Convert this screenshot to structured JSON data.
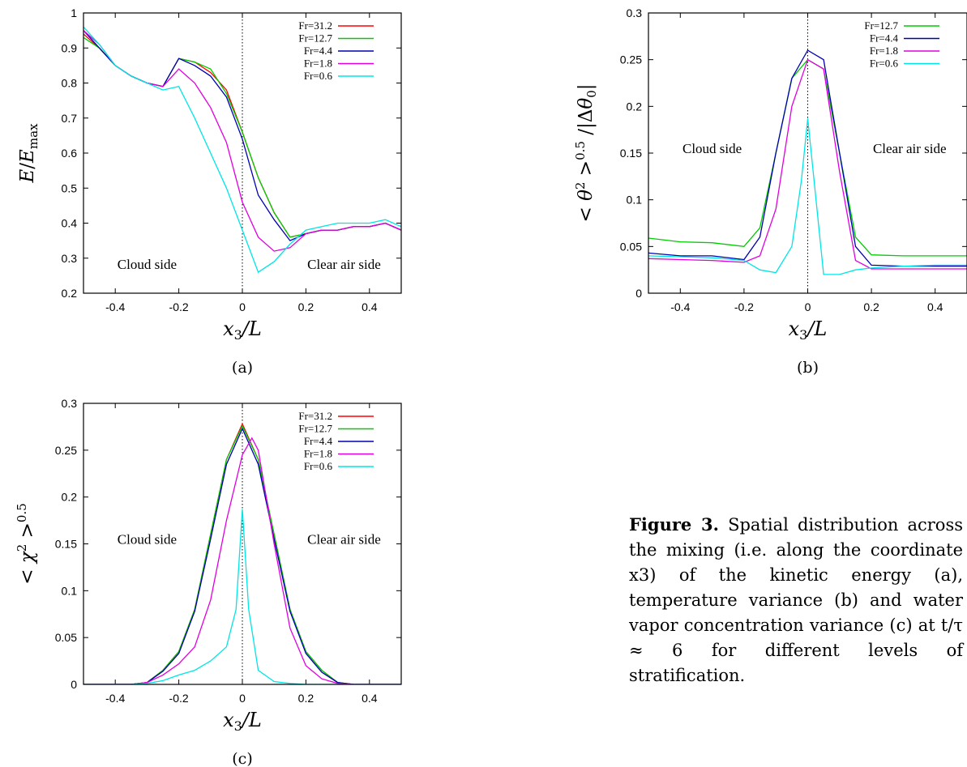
{
  "caption": {
    "label": "Figure 3.",
    "text": "Spatial distribution across the mixing (i.e. along the coordinate x3) of the kinetic energy (a), temperature variance (b) and water vapor concentration variance (c) at t/τ ≈ 6 for different levels of stratification."
  },
  "colors": {
    "Fr=31.2": "#ff0000",
    "Fr=12.7": "#00cc00",
    "Fr=4.4": "#0000b0",
    "Fr=1.8": "#e000e0",
    "Fr=0.6": "#00e5e5"
  },
  "chart_data": [
    {
      "panel": "(a)",
      "type": "line",
      "xlabel": "x3/L",
      "ylabel": "E/Emax",
      "xlim": [
        -0.5,
        0.5
      ],
      "ylim": [
        0.2,
        1.0
      ],
      "xticks": [
        "-0.4",
        "-0.2",
        "0",
        "0.2",
        "0.4"
      ],
      "yticks": [
        "0.2",
        "0.3",
        "0.4",
        "0.5",
        "0.6",
        "0.7",
        "0.8",
        "0.9",
        "1"
      ],
      "legend_position": "top-right",
      "annotations": [
        "Cloud side",
        "Clear air side"
      ],
      "grid": false,
      "series": [
        {
          "name": "Fr=31.2",
          "x": [
            -0.5,
            -0.45,
            -0.4,
            -0.35,
            -0.3,
            -0.25,
            -0.2,
            -0.15,
            -0.1,
            -0.05,
            0,
            0.05,
            0.1,
            0.15,
            0.2,
            0.25,
            0.3,
            0.35,
            0.4,
            0.45,
            0.5
          ],
          "y": [
            0.94,
            0.9,
            0.85,
            0.82,
            0.8,
            0.79,
            0.87,
            0.86,
            0.83,
            0.78,
            0.66,
            0.53,
            0.43,
            0.36,
            0.37,
            0.38,
            0.38,
            0.39,
            0.39,
            0.4,
            0.38
          ]
        },
        {
          "name": "Fr=12.7",
          "x": [
            -0.5,
            -0.45,
            -0.4,
            -0.35,
            -0.3,
            -0.25,
            -0.2,
            -0.15,
            -0.1,
            -0.05,
            0,
            0.05,
            0.1,
            0.15,
            0.2,
            0.25,
            0.3,
            0.35,
            0.4,
            0.45,
            0.5
          ],
          "y": [
            0.93,
            0.9,
            0.85,
            0.82,
            0.8,
            0.79,
            0.87,
            0.86,
            0.84,
            0.77,
            0.66,
            0.53,
            0.43,
            0.36,
            0.37,
            0.38,
            0.38,
            0.39,
            0.39,
            0.4,
            0.38
          ]
        },
        {
          "name": "Fr=4.4",
          "x": [
            -0.5,
            -0.45,
            -0.4,
            -0.35,
            -0.3,
            -0.25,
            -0.2,
            -0.15,
            -0.1,
            -0.05,
            0,
            0.05,
            0.1,
            0.15,
            0.2,
            0.25,
            0.3,
            0.35,
            0.4,
            0.45,
            0.5
          ],
          "y": [
            0.95,
            0.9,
            0.85,
            0.82,
            0.8,
            0.79,
            0.87,
            0.85,
            0.82,
            0.76,
            0.64,
            0.48,
            0.41,
            0.35,
            0.37,
            0.38,
            0.38,
            0.39,
            0.39,
            0.4,
            0.38
          ]
        },
        {
          "name": "Fr=1.8",
          "x": [
            -0.5,
            -0.45,
            -0.4,
            -0.35,
            -0.3,
            -0.25,
            -0.2,
            -0.15,
            -0.1,
            -0.05,
            0,
            0.05,
            0.1,
            0.15,
            0.2,
            0.25,
            0.3,
            0.35,
            0.4,
            0.45,
            0.5
          ],
          "y": [
            0.95,
            0.91,
            0.85,
            0.82,
            0.8,
            0.79,
            0.84,
            0.8,
            0.73,
            0.63,
            0.46,
            0.36,
            0.32,
            0.33,
            0.37,
            0.38,
            0.38,
            0.39,
            0.39,
            0.4,
            0.38
          ]
        },
        {
          "name": "Fr=0.6",
          "x": [
            -0.5,
            -0.45,
            -0.4,
            -0.35,
            -0.3,
            -0.25,
            -0.2,
            -0.15,
            -0.1,
            -0.05,
            0,
            0.05,
            0.1,
            0.15,
            0.2,
            0.25,
            0.3,
            0.35,
            0.4,
            0.45,
            0.5
          ],
          "y": [
            0.96,
            0.91,
            0.85,
            0.82,
            0.8,
            0.78,
            0.79,
            0.7,
            0.6,
            0.5,
            0.38,
            0.26,
            0.29,
            0.34,
            0.38,
            0.39,
            0.4,
            0.4,
            0.4,
            0.41,
            0.39
          ]
        }
      ]
    },
    {
      "panel": "(b)",
      "type": "line",
      "xlabel": "x3/L",
      "ylabel": "< θ2 >0.5 /|Δθ0|",
      "xlim": [
        -0.5,
        0.5
      ],
      "ylim": [
        0,
        0.3
      ],
      "xticks": [
        "-0.4",
        "-0.2",
        "0",
        "0.2",
        "0.4"
      ],
      "yticks": [
        "0",
        "0.05",
        "0.1",
        "0.15",
        "0.2",
        "0.25",
        "0.3"
      ],
      "legend_position": "top-right",
      "annotations": [
        "Cloud side",
        "Clear air side"
      ],
      "grid": false,
      "series": [
        {
          "name": "Fr=12.7",
          "x": [
            -0.5,
            -0.4,
            -0.3,
            -0.2,
            -0.15,
            -0.1,
            -0.05,
            0,
            0.05,
            0.1,
            0.15,
            0.2,
            0.3,
            0.4,
            0.5
          ],
          "y": [
            0.059,
            0.055,
            0.054,
            0.05,
            0.07,
            0.15,
            0.23,
            0.25,
            0.24,
            0.15,
            0.06,
            0.041,
            0.04,
            0.04,
            0.04
          ]
        },
        {
          "name": "Fr=4.4",
          "x": [
            -0.5,
            -0.4,
            -0.3,
            -0.2,
            -0.15,
            -0.1,
            -0.05,
            0,
            0.05,
            0.1,
            0.15,
            0.2,
            0.3,
            0.4,
            0.5
          ],
          "y": [
            0.043,
            0.04,
            0.04,
            0.036,
            0.06,
            0.15,
            0.23,
            0.26,
            0.25,
            0.15,
            0.05,
            0.03,
            0.029,
            0.029,
            0.029
          ]
        },
        {
          "name": "Fr=1.8",
          "x": [
            -0.5,
            -0.4,
            -0.3,
            -0.2,
            -0.15,
            -0.1,
            -0.05,
            0,
            0.05,
            0.1,
            0.15,
            0.2,
            0.3,
            0.4,
            0.5
          ],
          "y": [
            0.037,
            0.036,
            0.035,
            0.033,
            0.04,
            0.09,
            0.2,
            0.25,
            0.24,
            0.13,
            0.035,
            0.026,
            0.026,
            0.026,
            0.026
          ]
        },
        {
          "name": "Fr=0.6",
          "x": [
            -0.5,
            -0.4,
            -0.3,
            -0.2,
            -0.15,
            -0.1,
            -0.05,
            -0.02,
            0,
            0.02,
            0.05,
            0.1,
            0.15,
            0.2,
            0.3,
            0.4,
            0.5
          ],
          "y": [
            0.04,
            0.039,
            0.038,
            0.035,
            0.025,
            0.022,
            0.05,
            0.12,
            0.187,
            0.12,
            0.02,
            0.02,
            0.025,
            0.027,
            0.029,
            0.03,
            0.03
          ]
        }
      ]
    },
    {
      "panel": "(c)",
      "type": "line",
      "xlabel": "x3/L",
      "ylabel": "< χ2 >0.5",
      "xlim": [
        -0.5,
        0.5
      ],
      "ylim": [
        0,
        0.3
      ],
      "xticks": [
        "-0.4",
        "-0.2",
        "0",
        "0.2",
        "0.4"
      ],
      "yticks": [
        "0",
        "0.05",
        "0.1",
        "0.15",
        "0.2",
        "0.25",
        "0.3"
      ],
      "legend_position": "top-right",
      "annotations": [
        "Cloud side",
        "Clear air side"
      ],
      "grid": false,
      "series": [
        {
          "name": "Fr=31.2",
          "x": [
            -0.5,
            -0.35,
            -0.3,
            -0.25,
            -0.2,
            -0.15,
            -0.1,
            -0.05,
            0,
            0.05,
            0.1,
            0.15,
            0.2,
            0.25,
            0.3,
            0.35,
            0.5
          ],
          "y": [
            0,
            0,
            0.002,
            0.015,
            0.035,
            0.08,
            0.16,
            0.24,
            0.278,
            0.24,
            0.16,
            0.08,
            0.035,
            0.015,
            0.002,
            0,
            0
          ]
        },
        {
          "name": "Fr=12.7",
          "x": [
            -0.5,
            -0.35,
            -0.3,
            -0.25,
            -0.2,
            -0.15,
            -0.1,
            -0.05,
            0,
            0.05,
            0.1,
            0.15,
            0.2,
            0.25,
            0.3,
            0.35,
            0.5
          ],
          "y": [
            0,
            0,
            0.002,
            0.015,
            0.035,
            0.08,
            0.16,
            0.24,
            0.276,
            0.24,
            0.16,
            0.08,
            0.035,
            0.015,
            0.002,
            0,
            0
          ]
        },
        {
          "name": "Fr=4.4",
          "x": [
            -0.5,
            -0.35,
            -0.3,
            -0.25,
            -0.2,
            -0.15,
            -0.1,
            -0.05,
            0,
            0.05,
            0.1,
            0.15,
            0.2,
            0.25,
            0.3,
            0.35,
            0.5
          ],
          "y": [
            0,
            0,
            0.002,
            0.014,
            0.033,
            0.078,
            0.155,
            0.235,
            0.273,
            0.235,
            0.155,
            0.078,
            0.033,
            0.013,
            0.002,
            0,
            0
          ]
        },
        {
          "name": "Fr=1.8",
          "x": [
            -0.5,
            -0.35,
            -0.3,
            -0.25,
            -0.2,
            -0.15,
            -0.1,
            -0.05,
            0,
            0.03,
            0.05,
            0.1,
            0.15,
            0.2,
            0.25,
            0.3,
            0.35,
            0.5
          ],
          "y": [
            0,
            0,
            0.002,
            0.01,
            0.022,
            0.04,
            0.09,
            0.175,
            0.245,
            0.263,
            0.25,
            0.15,
            0.06,
            0.02,
            0.006,
            0.001,
            0,
            0
          ]
        },
        {
          "name": "Fr=0.6",
          "x": [
            -0.5,
            -0.35,
            -0.3,
            -0.25,
            -0.2,
            -0.15,
            -0.1,
            -0.05,
            -0.02,
            0,
            0.02,
            0.05,
            0.1,
            0.15,
            0.2,
            0.25,
            0.3,
            0.5
          ],
          "y": [
            0,
            0,
            0.001,
            0.004,
            0.01,
            0.015,
            0.025,
            0.04,
            0.08,
            0.187,
            0.08,
            0.015,
            0.003,
            0.001,
            0,
            0,
            0,
            0
          ]
        }
      ]
    }
  ]
}
